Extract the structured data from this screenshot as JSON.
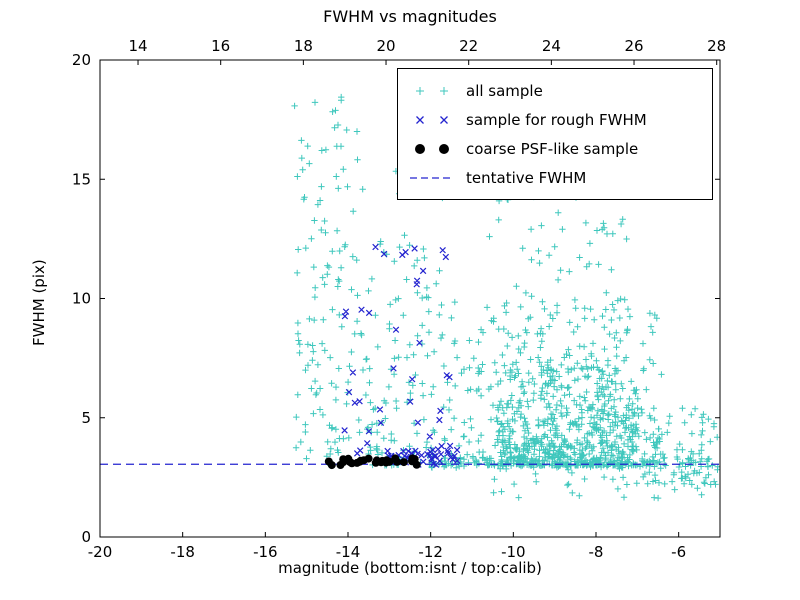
{
  "chart_data": {
    "type": "scatter",
    "title": "FWHM vs magnitudes",
    "xlabel": "magnitude (bottom:isnt / top:calib)",
    "ylabel": "FWHM (pix)",
    "xlim": [
      -20,
      -5
    ],
    "ylim": [
      0,
      20
    ],
    "x_ticks": [
      -20,
      -18,
      -16,
      -14,
      -12,
      -10,
      -8,
      -6
    ],
    "y_ticks": [
      0,
      5,
      10,
      15,
      20
    ],
    "top_axis": {
      "ticks": [
        14,
        16,
        18,
        20,
        22,
        24,
        26,
        28
      ],
      "lim": [
        13.08,
        28.08
      ]
    },
    "grid": false,
    "legend_position": "upper-right-inside",
    "tentative_fwhm": 3.05,
    "colors": {
      "all_sample": "#3fc7bd",
      "rough_fwhm": "#2424cf",
      "psf_like": "#000000",
      "dashed_line": "#2424cf"
    },
    "legend": [
      {
        "label": "all sample",
        "marker": "plus",
        "color": "#3fc7bd"
      },
      {
        "label": "sample for rough FWHM",
        "marker": "x",
        "color": "#2424cf"
      },
      {
        "label": "coarse PSF-like sample",
        "marker": "dot",
        "color": "#000000"
      },
      {
        "label": "tentative FWHM",
        "marker": "dashed-line",
        "color": "#2424cf"
      }
    ],
    "series": [
      {
        "name": "all sample",
        "marker": "plus",
        "color": "#3fc7bd",
        "seed": 101,
        "size": 3.2,
        "stroke": 1,
        "clusters": [
          {
            "count": 130,
            "x": [
              -15.3,
              -13.6
            ],
            "y": [
              3.0,
              18.6
            ],
            "bias": 1.25
          },
          {
            "count": 150,
            "x": [
              -13.6,
              -11.3
            ],
            "y": [
              3.0,
              12.5
            ],
            "bias": 1.7
          },
          {
            "count": 12,
            "x": [
              -13.0,
              -11.6
            ],
            "y": [
              12.5,
              17.6
            ],
            "bias": 1.0
          },
          {
            "count": 500,
            "x": [
              -10.4,
              -7.0
            ],
            "y": [
              3.0,
              7.0
            ],
            "bias": 2.0
          },
          {
            "count": 280,
            "x": [
              -11.3,
              -6.4
            ],
            "y": [
              3.0,
              10.0
            ],
            "bias": 2.2
          },
          {
            "count": 130,
            "x": [
              -10.6,
              -7.2
            ],
            "y": [
              7.0,
              14.8
            ],
            "bias": 1.8
          },
          {
            "count": 130,
            "x": [
              -12.0,
              -5.05
            ],
            "y": [
              2.9,
              3.35
            ],
            "bias": 1.0
          },
          {
            "count": 80,
            "x": [
              -7.0,
              -5.05
            ],
            "y": [
              2.2,
              5.5
            ],
            "bias": 1.5
          },
          {
            "count": 35,
            "x": [
              -10.5,
              -5.2
            ],
            "y": [
              1.6,
              2.95
            ],
            "bias": 1.0
          }
        ]
      },
      {
        "name": "sample for rough FWHM",
        "marker": "x",
        "color": "#2424cf",
        "seed": 202,
        "size": 2.8,
        "stroke": 1.2,
        "clusters": [
          {
            "count": 22,
            "x": [
              -14.35,
              -12.0
            ],
            "y": [
              3.4,
              9.8
            ],
            "bias": 1.5
          },
          {
            "count": 10,
            "x": [
              -13.4,
              -11.6
            ],
            "y": [
              9.8,
              12.3
            ],
            "bias": 1.0
          },
          {
            "count": 40,
            "x": [
              -13.1,
              -11.35
            ],
            "y": [
              3.0,
              3.7
            ],
            "bias": 1.0
          },
          {
            "count": 8,
            "x": [
              -12.4,
              -11.5
            ],
            "y": [
              3.7,
              6.8
            ],
            "bias": 1.0
          }
        ]
      },
      {
        "name": "coarse PSF-like sample",
        "marker": "dot",
        "color": "#000000",
        "seed": 303,
        "size": 4.0,
        "stroke": 0,
        "clusters": [
          {
            "count": 30,
            "x": [
              -14.5,
              -12.25
            ],
            "y": [
              3.0,
              3.3
            ],
            "bias": 1.0
          }
        ]
      }
    ]
  }
}
